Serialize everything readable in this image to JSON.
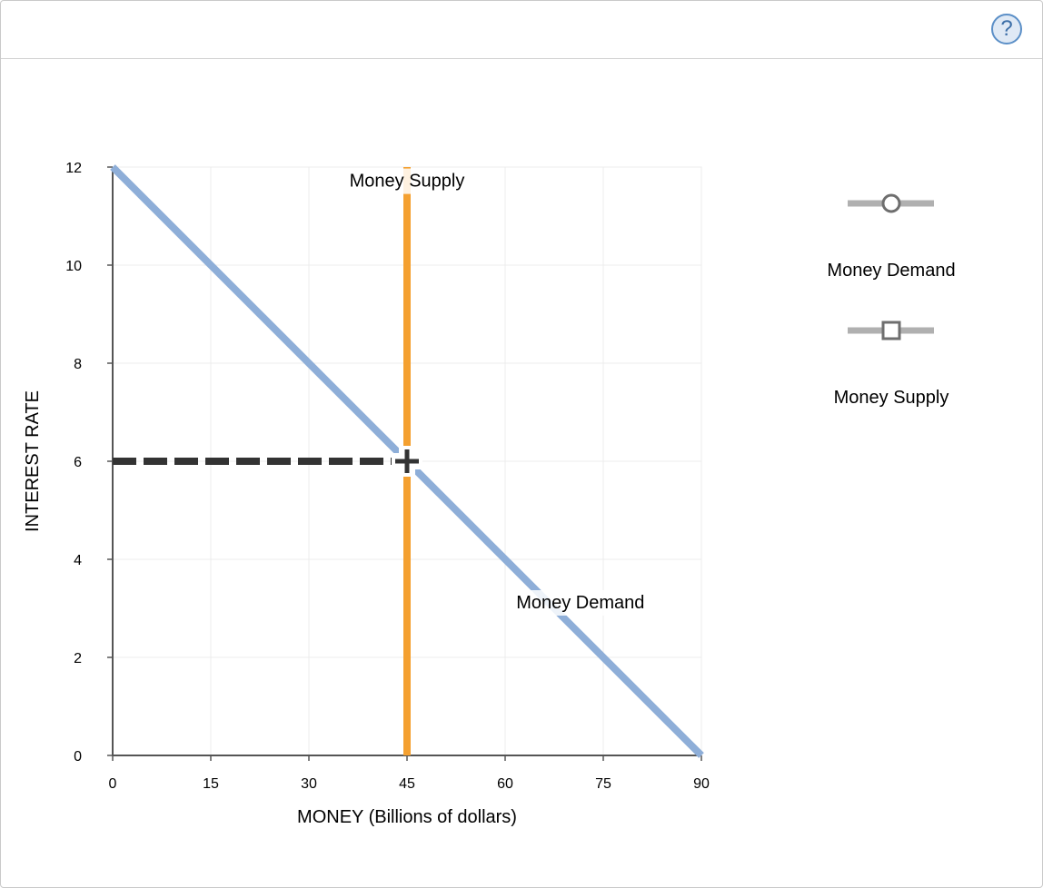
{
  "help": {
    "icon": "?"
  },
  "chart_data": {
    "type": "line",
    "xlabel": "MONEY (Billions of dollars)",
    "ylabel": "INTEREST RATE",
    "xlim": [
      0,
      90
    ],
    "ylim": [
      0,
      12
    ],
    "x_ticks": [
      0,
      15,
      30,
      45,
      60,
      75,
      90
    ],
    "y_ticks": [
      0,
      2,
      4,
      6,
      8,
      10,
      12
    ],
    "grid": true,
    "legend_position": "right",
    "series": [
      {
        "name": "Money Demand",
        "x": [
          0,
          90
        ],
        "y": [
          12,
          0
        ],
        "color": "#8eaed8",
        "marker": "circle"
      },
      {
        "name": "Money Supply",
        "x": [
          45,
          45
        ],
        "y": [
          0,
          12
        ],
        "color": "#f4a030",
        "marker": "square"
      }
    ],
    "annotations": [
      {
        "text": "Money Supply",
        "x": 45,
        "y": 11.6
      },
      {
        "text": "Money Demand",
        "x": 71.5,
        "y": 3.0
      }
    ],
    "equilibrium": {
      "x": 45,
      "y": 6,
      "marker": "plus",
      "dashed_to_y_axis": true
    }
  },
  "legend": {
    "items": [
      {
        "label": "Money Demand",
        "marker": "circle-icon"
      },
      {
        "label": "Money Supply",
        "marker": "square-icon"
      }
    ]
  }
}
